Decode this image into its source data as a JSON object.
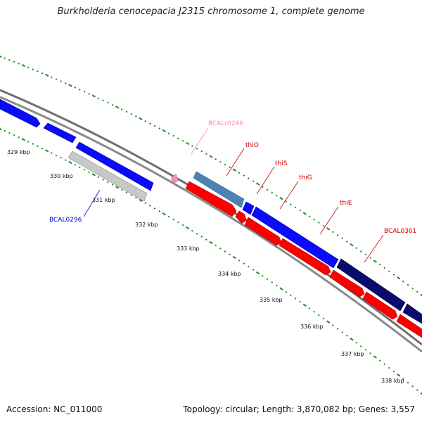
{
  "title": "Burkholderia cenocepacia J2315 chromosome 1, complete genome",
  "footer": {
    "accession": "Accession: NC_011000",
    "summary": "Topology: circular; Length: 3,870,082 bp; Genes: 3,557"
  },
  "scale_labels": [
    "329 kbp",
    "330 kbp",
    "331 kbp",
    "332 kbp",
    "333 kbp",
    "334 kbp",
    "335 kbp",
    "336 kbp",
    "337 kbp",
    "338 kbp"
  ],
  "gene_labels": [
    {
      "id": "BCALr0296",
      "text": "BCALr0296",
      "color": "#f08fc0"
    },
    {
      "id": "thiO",
      "text": "thiO",
      "color": "#cc0000"
    },
    {
      "id": "thiS",
      "text": "thiS",
      "color": "#cc0000"
    },
    {
      "id": "thiG",
      "text": "thiG",
      "color": "#cc0000"
    },
    {
      "id": "thiE",
      "text": "thiE",
      "color": "#cc0000"
    },
    {
      "id": "BCAL0301",
      "text": "BCAL0301",
      "color": "#cc0000"
    },
    {
      "id": "BCAL0296",
      "text": "BCAL0296",
      "color": "#0000cc"
    }
  ],
  "colors": {
    "forward_gene": "#0a0aff",
    "reverse_gene": "#ff0000",
    "operon_gene": "#4f82b4",
    "highlight_gene": "#0b0b6e",
    "pseudo_gene": "#c8c8c8",
    "rna_feature": "#f08fc0",
    "backbone": "#7a7a7a",
    "scale_dots": "#1d8a1d"
  }
}
